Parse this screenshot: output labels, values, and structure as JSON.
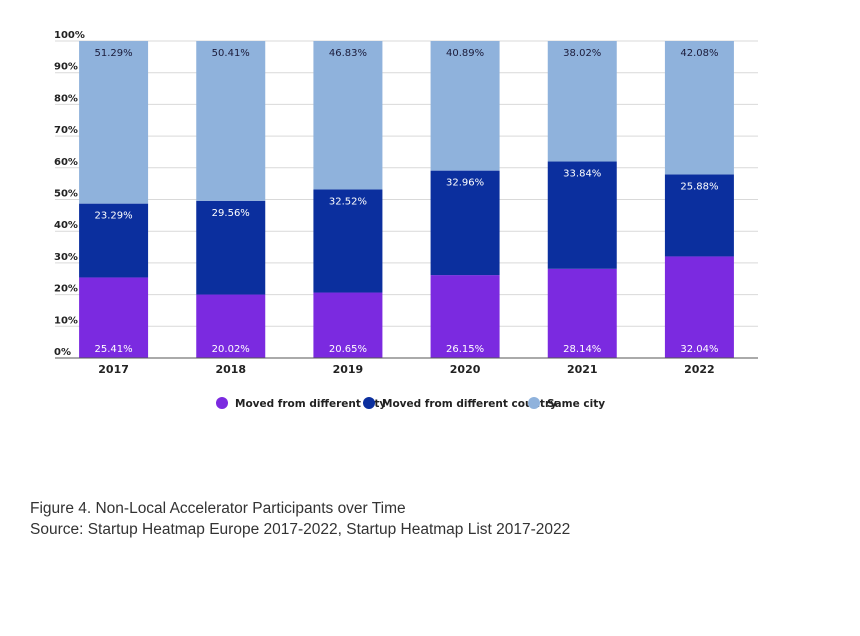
{
  "chart_data": {
    "type": "bar",
    "stacked": true,
    "categories": [
      "2017",
      "2018",
      "2019",
      "2020",
      "2021",
      "2022"
    ],
    "series": [
      {
        "name": "Moved from different city",
        "color": "#7b2ae0",
        "values": [
          25.41,
          20.02,
          20.65,
          26.15,
          28.14,
          32.04
        ],
        "labels": [
          "25.41%",
          "20.02%",
          "20.65%",
          "26.15%",
          "28.14%",
          "32.04%"
        ]
      },
      {
        "name": "Moved from different country",
        "color": "#0b2f9e",
        "values": [
          23.29,
          29.56,
          32.52,
          32.96,
          33.84,
          25.88
        ],
        "labels": [
          "23.29%",
          "29.56%",
          "32.52%",
          "32.96%",
          "33.84%",
          "25.88%"
        ]
      },
      {
        "name": "Same city",
        "color": "#8fb2dc",
        "values": [
          51.29,
          50.41,
          46.83,
          40.89,
          38.02,
          42.08
        ],
        "labels": [
          "51.29%",
          "50.41%",
          "46.83%",
          "40.89%",
          "38.02%",
          "42.08%"
        ]
      }
    ],
    "ylim": [
      0,
      100
    ],
    "yticks": [
      "0%",
      "10%",
      "20%",
      "30%",
      "40%",
      "50%",
      "60%",
      "70%",
      "80%",
      "90%",
      "100%"
    ],
    "grid": true,
    "legend_position": "bottom"
  },
  "caption": {
    "figure_title": "Figure 4. Non-Local Accelerator Participants over Time",
    "source": "Source: Startup Heatmap Europe 2017-2022, Startup Heatmap List 2017-2022"
  }
}
